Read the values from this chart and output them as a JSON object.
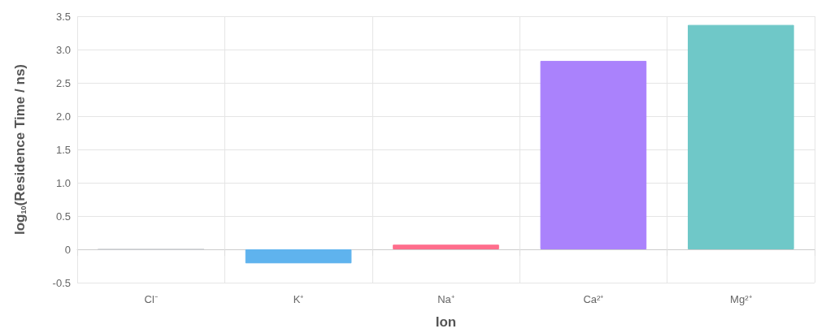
{
  "chart_data": {
    "type": "bar",
    "xlabel": "Ion",
    "ylabel": "log$_{10}$(Residence Time / ns)",
    "categories": [
      "Cl⁻",
      "K⁺",
      "Na⁺",
      "Ca²⁺",
      "Mg²⁺"
    ],
    "values": [
      0,
      -0.21,
      0.07,
      2.83,
      3.37
    ],
    "colors": [
      "#c9cbcf",
      "#5fb3ee",
      "#ff6e8c",
      "#aa82fc",
      "#6fc8c8"
    ],
    "ylim": [
      -0.5,
      3.5
    ],
    "yticks": [
      -0.5,
      0,
      0.5,
      {
        "value": 1,
        "label": "1.0"
      },
      1.5,
      {
        "value": 2,
        "label": "2.0"
      },
      2.5,
      {
        "value": 3,
        "label": "3.0"
      },
      3.5
    ],
    "grid": true
  }
}
